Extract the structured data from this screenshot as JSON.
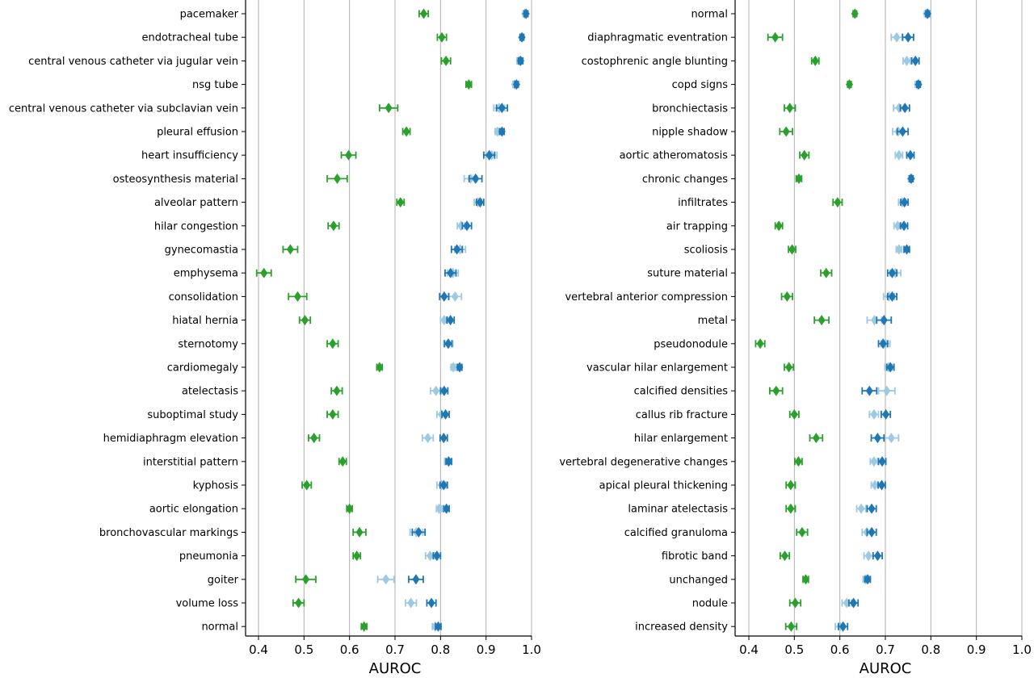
{
  "colors": {
    "green": "#2ca02c",
    "light_blue": "#9ecae1",
    "dark_blue": "#1f77b4",
    "grid": "#b0b0b0"
  },
  "chart_data": [
    {
      "type": "scatter",
      "xlabel": "AUROC",
      "xlim": [
        0.4,
        1.0
      ],
      "xticks": [
        "0.4",
        "0.5",
        "0.6",
        "0.7",
        "0.8",
        "0.9",
        "1.0"
      ],
      "grid": "vertical",
      "categories": [
        "pacemaker",
        "endotracheal tube",
        "central venous catheter via jugular vein",
        "nsg tube",
        "central venous catheter via subclavian vein",
        "pleural effusion",
        "heart insufficiency",
        "osteosynthesis material",
        "alveolar pattern",
        "hilar congestion",
        "gynecomastia",
        "emphysema",
        "consolidation",
        "hiatal hernia",
        "sternotomy",
        "cardiomegaly",
        "atelectasis",
        "suboptimal study",
        "hemidiaphragm elevation",
        "interstitial pattern",
        "kyphosis",
        "aortic elongation",
        "bronchovascular markings",
        "pneumonia",
        "goiter",
        "volume loss",
        "normal"
      ],
      "series": [
        {
          "color": "green",
          "values": [
            0.763,
            0.803,
            0.812,
            0.862,
            0.686,
            0.725,
            0.598,
            0.573,
            0.712,
            0.565,
            0.47,
            0.412,
            0.486,
            0.502,
            0.563,
            0.666,
            0.572,
            0.563,
            0.522,
            0.585,
            0.506,
            0.6,
            0.622,
            0.616,
            0.504,
            0.488,
            0.632
          ],
          "err": [
            0.01,
            0.01,
            0.01,
            0.006,
            0.02,
            0.008,
            0.016,
            0.022,
            0.008,
            0.012,
            0.016,
            0.016,
            0.02,
            0.012,
            0.012,
            0.006,
            0.012,
            0.012,
            0.012,
            0.008,
            0.01,
            0.006,
            0.014,
            0.008,
            0.022,
            0.012,
            0.006
          ]
        },
        {
          "color": "light_blue",
          "values": [
            0.985,
            0.978,
            0.973,
            0.963,
            0.929,
            0.925,
            0.912,
            0.866,
            0.882,
            0.845,
            0.843,
            0.827,
            0.832,
            0.808,
            0.817,
            0.828,
            0.79,
            0.802,
            0.772,
            0.817,
            0.802,
            0.797,
            0.747,
            0.777,
            0.68,
            0.735,
            0.788
          ],
          "err": [
            0.004,
            0.004,
            0.005,
            0.004,
            0.012,
            0.005,
            0.012,
            0.014,
            0.008,
            0.008,
            0.012,
            0.012,
            0.014,
            0.008,
            0.01,
            0.005,
            0.012,
            0.01,
            0.012,
            0.008,
            0.01,
            0.006,
            0.014,
            0.01,
            0.018,
            0.012,
            0.006
          ]
        },
        {
          "color": "dark_blue",
          "values": [
            0.988,
            0.979,
            0.976,
            0.967,
            0.935,
            0.935,
            0.907,
            0.877,
            0.887,
            0.858,
            0.836,
            0.822,
            0.808,
            0.822,
            0.817,
            0.842,
            0.808,
            0.811,
            0.807,
            0.818,
            0.807,
            0.813,
            0.752,
            0.792,
            0.746,
            0.78,
            0.795
          ],
          "err": [
            0.004,
            0.004,
            0.005,
            0.004,
            0.012,
            0.005,
            0.012,
            0.014,
            0.008,
            0.01,
            0.012,
            0.012,
            0.01,
            0.008,
            0.008,
            0.005,
            0.008,
            0.008,
            0.008,
            0.006,
            0.008,
            0.006,
            0.014,
            0.008,
            0.016,
            0.01,
            0.006
          ]
        }
      ]
    },
    {
      "type": "scatter",
      "xlabel": "AUROC",
      "xlim": [
        0.4,
        1.0
      ],
      "xticks": [
        "0.4",
        "0.5",
        "0.6",
        "0.7",
        "0.8",
        "0.9",
        "1.0"
      ],
      "grid": "vertical",
      "categories": [
        "normal",
        "diaphragmatic eventration",
        "costophrenic angle blunting",
        "copd signs",
        "bronchiectasis",
        "nipple shadow",
        "aortic atheromatosis",
        "chronic changes",
        "infiltrates",
        "air trapping",
        "scoliosis",
        "suture material",
        "vertebral anterior compression",
        "metal",
        "pseudonodule",
        "vascular hilar enlargement",
        "calcified densities",
        "callus rib fracture",
        "hilar enlargement",
        "vertebral degenerative changes",
        "apical pleural thickening",
        "laminar atelectasis",
        "calcified granuloma",
        "fibrotic band",
        "unchanged",
        "nodule",
        "increased density"
      ],
      "series": [
        {
          "color": "green",
          "values": [
            0.633,
            0.458,
            0.546,
            0.621,
            0.49,
            0.482,
            0.522,
            0.51,
            0.595,
            0.466,
            0.495,
            0.57,
            0.484,
            0.56,
            0.425,
            0.488,
            0.46,
            0.5,
            0.548,
            0.509,
            0.492,
            0.492,
            0.517,
            0.479,
            0.525,
            0.502,
            0.493
          ],
          "err": [
            0.004,
            0.016,
            0.008,
            0.004,
            0.012,
            0.014,
            0.01,
            0.006,
            0.01,
            0.008,
            0.008,
            0.012,
            0.012,
            0.016,
            0.01,
            0.01,
            0.014,
            0.01,
            0.014,
            0.008,
            0.01,
            0.01,
            0.012,
            0.01,
            0.006,
            0.012,
            0.012
          ]
        },
        {
          "color": "light_blue",
          "values": [
            0.79,
            0.725,
            0.747,
            0.77,
            0.73,
            0.728,
            0.73,
            0.755,
            0.737,
            0.727,
            0.73,
            0.722,
            0.708,
            0.676,
            0.7,
            0.707,
            0.703,
            0.675,
            0.713,
            0.675,
            0.677,
            0.647,
            0.659,
            0.663,
            0.657,
            0.615,
            0.6
          ],
          "err": [
            0.004,
            0.012,
            0.008,
            0.004,
            0.012,
            0.012,
            0.008,
            0.004,
            0.008,
            0.008,
            0.006,
            0.012,
            0.012,
            0.016,
            0.01,
            0.008,
            0.018,
            0.01,
            0.016,
            0.008,
            0.008,
            0.01,
            0.01,
            0.01,
            0.006,
            0.01,
            0.01
          ]
        },
        {
          "color": "dark_blue",
          "values": [
            0.793,
            0.75,
            0.766,
            0.773,
            0.743,
            0.738,
            0.755,
            0.757,
            0.742,
            0.741,
            0.747,
            0.715,
            0.715,
            0.697,
            0.695,
            0.711,
            0.665,
            0.701,
            0.683,
            0.693,
            0.692,
            0.67,
            0.67,
            0.683,
            0.661,
            0.63,
            0.607
          ],
          "err": [
            0.004,
            0.012,
            0.008,
            0.004,
            0.01,
            0.012,
            0.008,
            0.004,
            0.008,
            0.008,
            0.006,
            0.01,
            0.01,
            0.016,
            0.01,
            0.008,
            0.016,
            0.01,
            0.014,
            0.008,
            0.008,
            0.01,
            0.01,
            0.01,
            0.006,
            0.01,
            0.01
          ]
        }
      ]
    }
  ]
}
